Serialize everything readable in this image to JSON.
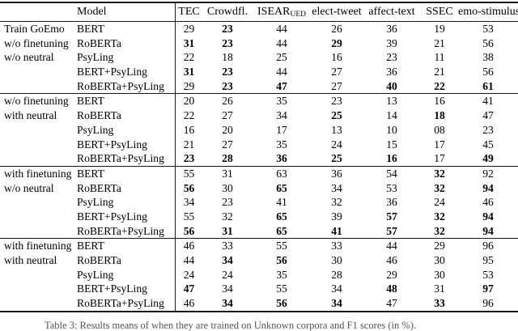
{
  "caption": {
    "text": "Table 3: Results means of when they are trained on Unknown corpora and F1 scores (in %)."
  },
  "table": {
    "header": {
      "model_label": "Model",
      "columns": [
        "TEC",
        "Crowdfl.",
        "ISEAR",
        "elect-tweet",
        "affect-text",
        "SSEC",
        "emo-stimulus"
      ],
      "isear_subscript": "UED"
    },
    "groups": [
      {
        "label_lines": [
          "Train GoEmo",
          "w/o finetuning",
          "w/o neutral"
        ],
        "rows": [
          {
            "model": "BERT",
            "values": [
              "29",
              "23",
              "44",
              "26",
              "36",
              "19",
              "53"
            ],
            "bold": [
              false,
              true,
              false,
              false,
              false,
              false,
              false
            ]
          },
          {
            "model": "RoBERTa",
            "values": [
              "31",
              "23",
              "44",
              "29",
              "39",
              "21",
              "56"
            ],
            "bold": [
              true,
              true,
              false,
              true,
              false,
              false,
              false
            ]
          },
          {
            "model": "PsyLing",
            "values": [
              "22",
              "18",
              "25",
              "16",
              "23",
              "11",
              "38"
            ],
            "bold": [
              false,
              false,
              false,
              false,
              false,
              false,
              false
            ]
          },
          {
            "model": "BERT+PsyLing",
            "values": [
              "31",
              "23",
              "44",
              "27",
              "36",
              "21",
              "56"
            ],
            "bold": [
              true,
              true,
              false,
              false,
              false,
              false,
              false
            ]
          },
          {
            "model": "RoBERTa+PsyLing",
            "values": [
              "29",
              "23",
              "47",
              "27",
              "40",
              "22",
              "61"
            ],
            "bold": [
              false,
              true,
              true,
              false,
              true,
              true,
              true
            ]
          }
        ]
      },
      {
        "label_lines": [
          "w/o finetuning",
          "with neutral"
        ],
        "rows": [
          {
            "model": "BERT",
            "values": [
              "20",
              "26",
              "35",
              "23",
              "13",
              "16",
              "41"
            ],
            "bold": [
              false,
              false,
              false,
              false,
              false,
              false,
              false
            ]
          },
          {
            "model": "RoBERTa",
            "values": [
              "22",
              "27",
              "34",
              "25",
              "14",
              "18",
              "47"
            ],
            "bold": [
              false,
              false,
              false,
              true,
              false,
              true,
              false
            ]
          },
          {
            "model": "PsyLing",
            "values": [
              "16",
              "20",
              "17",
              "13",
              "10",
              "08",
              "23"
            ],
            "bold": [
              false,
              false,
              false,
              false,
              false,
              false,
              false
            ]
          },
          {
            "model": "BERT+PsyLing",
            "values": [
              "21",
              "27",
              "35",
              "24",
              "15",
              "17",
              "45"
            ],
            "bold": [
              false,
              false,
              false,
              false,
              false,
              false,
              false
            ]
          },
          {
            "model": "RoBERTa+PsyLing",
            "values": [
              "23",
              "28",
              "36",
              "25",
              "16",
              "17",
              "49"
            ],
            "bold": [
              true,
              true,
              true,
              true,
              true,
              false,
              true
            ]
          }
        ]
      },
      {
        "label_lines": [
          "with finetuning",
          "w/o neutral"
        ],
        "rows": [
          {
            "model": "BERT",
            "values": [
              "55",
              "31",
              "63",
              "36",
              "54",
              "32",
              "92"
            ],
            "bold": [
              false,
              false,
              false,
              false,
              false,
              true,
              false
            ]
          },
          {
            "model": "RoBERTa",
            "values": [
              "56",
              "30",
              "65",
              "34",
              "53",
              "32",
              "94"
            ],
            "bold": [
              true,
              false,
              true,
              false,
              false,
              true,
              true
            ]
          },
          {
            "model": "PsyLing",
            "values": [
              "34",
              "23",
              "41",
              "32",
              "36",
              "24",
              "46"
            ],
            "bold": [
              false,
              false,
              false,
              false,
              false,
              false,
              false
            ]
          },
          {
            "model": "BERT+PsyLing",
            "values": [
              "55",
              "32",
              "65",
              "39",
              "57",
              "32",
              "94"
            ],
            "bold": [
              false,
              false,
              true,
              false,
              true,
              true,
              true
            ]
          },
          {
            "model": "RoBERTa+PsyLing",
            "values": [
              "56",
              "31",
              "65",
              "41",
              "57",
              "32",
              "94"
            ],
            "bold": [
              true,
              true,
              true,
              true,
              true,
              true,
              true
            ]
          }
        ]
      },
      {
        "label_lines": [
          "with finetuning",
          "with neutral"
        ],
        "rows": [
          {
            "model": "BERT",
            "values": [
              "46",
              "33",
              "55",
              "33",
              "44",
              "29",
              "96"
            ],
            "bold": [
              false,
              false,
              false,
              false,
              false,
              false,
              false
            ]
          },
          {
            "model": "RoBERTa",
            "values": [
              "44",
              "34",
              "56",
              "30",
              "46",
              "30",
              "95"
            ],
            "bold": [
              false,
              true,
              true,
              false,
              false,
              false,
              false
            ]
          },
          {
            "model": "PsyLing",
            "values": [
              "24",
              "24",
              "35",
              "28",
              "29",
              "30",
              "53"
            ],
            "bold": [
              false,
              false,
              false,
              false,
              false,
              false,
              false
            ]
          },
          {
            "model": "BERT+PsyLing",
            "values": [
              "47",
              "34",
              "55",
              "34",
              "48",
              "31",
              "97"
            ],
            "bold": [
              true,
              false,
              false,
              false,
              true,
              false,
              true
            ]
          },
          {
            "model": "RoBERTa+PsyLing",
            "values": [
              "46",
              "34",
              "56",
              "34",
              "47",
              "33",
              "96"
            ],
            "bold": [
              false,
              true,
              true,
              true,
              false,
              true,
              false
            ]
          }
        ]
      }
    ]
  }
}
